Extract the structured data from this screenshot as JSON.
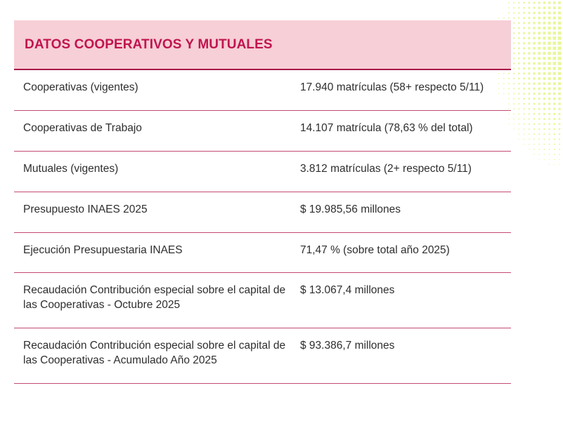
{
  "header": {
    "title": "DATOS COOPERATIVOS Y MUTUALES"
  },
  "rows": [
    {
      "label": "Cooperativas (vigentes)",
      "value": "17.940 matrículas (58+ respecto 5/11)"
    },
    {
      "label": "Cooperativas de Trabajo",
      "value": "14.107 matrícula (78,63 % del total)"
    },
    {
      "label": "Mutuales (vigentes)",
      "value": "3.812 matrículas (2+ respecto 5/11)"
    },
    {
      "label": "Presupuesto INAES 2025",
      "value": "$ 19.985,56 millones"
    },
    {
      "label": "Ejecución Presupuestaria INAES",
      "value": "71,47 % (sobre total año 2025)"
    },
    {
      "label": "Recaudación Contribución especial sobre el capital de las Cooperativas - Octubre 2025",
      "value": "$ 13.067,4 millones"
    },
    {
      "label": "Recaudación Contribución especial sobre el capital de las Cooperativas - Acumulado Año 2025",
      "value": "$ 93.386,7 millones"
    }
  ],
  "colors": {
    "accent": "#c0154f",
    "header_bg": "#f7cfd6",
    "divider": "#c44a72",
    "dots": "#e8f79a"
  }
}
